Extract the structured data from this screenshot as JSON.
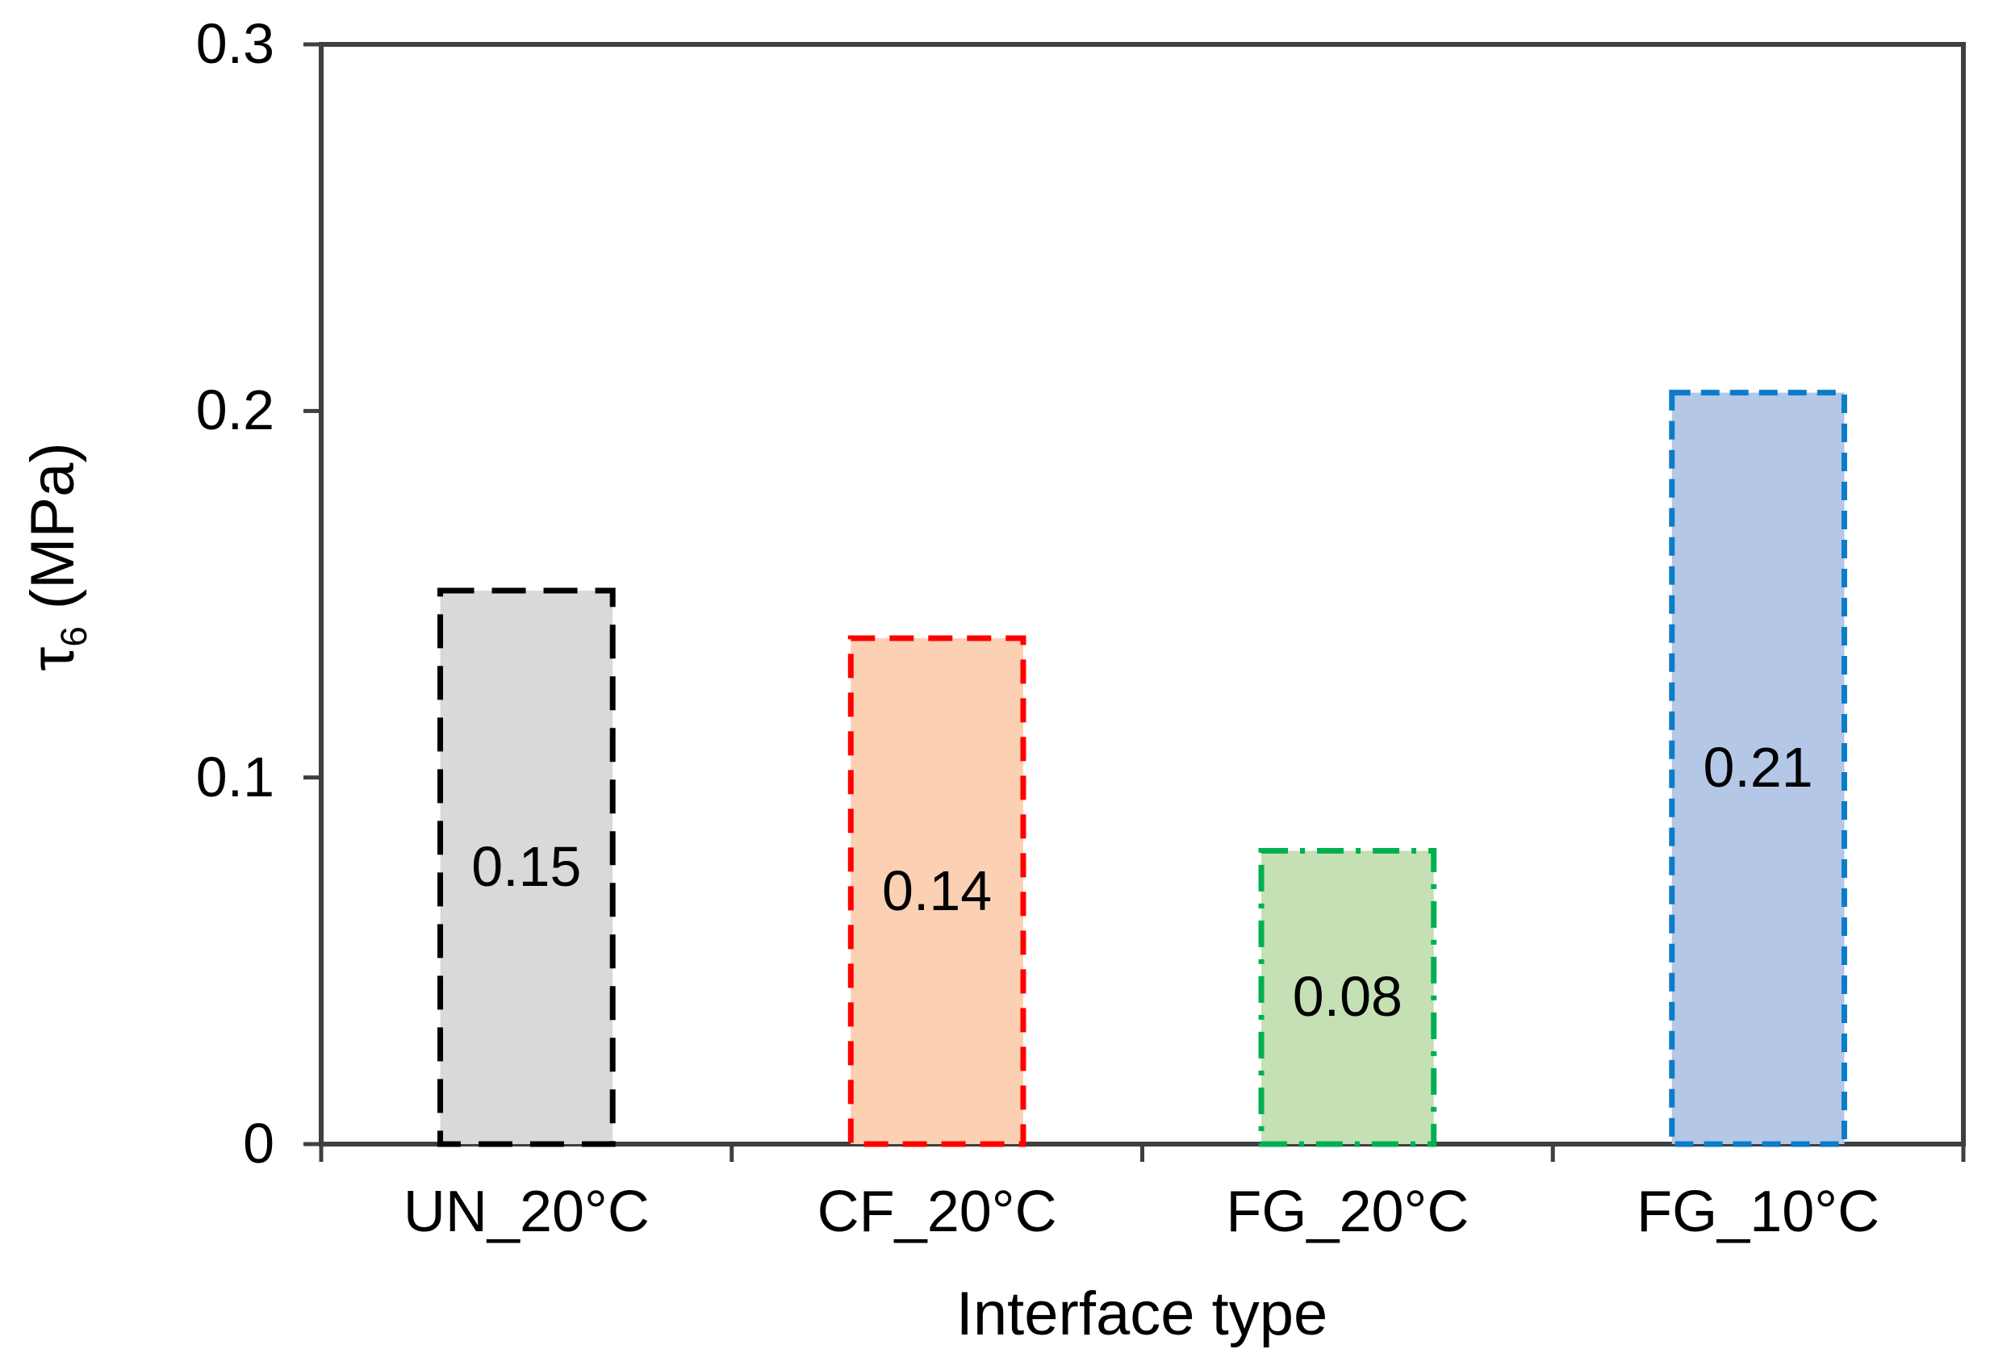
{
  "chart_data": {
    "type": "bar",
    "title": "",
    "xlabel": "Interface type",
    "ylabel": "τ6 (MPa)",
    "ylabel_parts": {
      "symbol": "τ",
      "subscript": "6",
      "unit": " (MPa)"
    },
    "ylim": [
      0,
      0.3
    ],
    "grid": false,
    "legend": false,
    "yticks": [
      {
        "label": "0.3",
        "value": 0.3
      },
      {
        "label": "0.2",
        "value": 0.2
      },
      {
        "label": "0.1",
        "value": 0.1
      },
      {
        "label": "0",
        "value": 0
      }
    ],
    "categories": [
      "UN_20°C",
      "CF_20°C",
      "FG_20°C",
      "FG_10°C"
    ],
    "values": [
      0.15,
      0.14,
      0.08,
      0.21
    ],
    "bars": [
      {
        "category": "UN_20°C",
        "value": 0.15,
        "label": "0.15",
        "drawn_value": 0.151,
        "fill": "#D9D9D9",
        "stroke": "#000000",
        "dash": "42 22"
      },
      {
        "category": "CF_20°C",
        "value": 0.14,
        "label": "0.14",
        "drawn_value": 0.138,
        "fill": "#FBD0B3",
        "stroke": "#FF0000",
        "dash": "30 18"
      },
      {
        "category": "FG_20°C",
        "value": 0.08,
        "label": "0.08",
        "drawn_value": 0.08,
        "fill": "#C5E0B4",
        "stroke": "#00B050",
        "dash": "33 15 6 15"
      },
      {
        "category": "FG_10°C",
        "value": 0.21,
        "label": "0.21",
        "drawn_value": 0.205,
        "fill": "#B4C7E7",
        "stroke": "#0C7CC8",
        "dash": "23 13"
      }
    ],
    "style": {
      "axis_color": "#3F3F3F",
      "text_color": "#000000",
      "value_label_position": "center"
    }
  }
}
